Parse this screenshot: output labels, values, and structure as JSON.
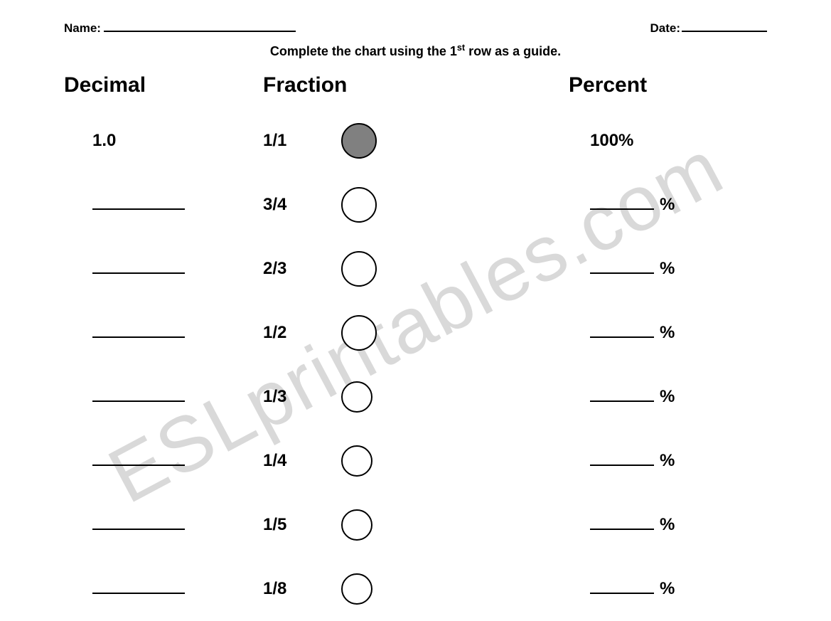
{
  "header": {
    "name_label": "Name:",
    "date_label": "Date:"
  },
  "instruction": {
    "prefix": "Complete the chart using the 1",
    "sup": "st",
    "suffix": " row as a guide."
  },
  "column_headers": {
    "decimal": "Decimal",
    "fraction": "Fraction",
    "percent": "Percent"
  },
  "rows": [
    {
      "decimal": "1.0",
      "fraction": "1/1",
      "circle_filled": true,
      "circle_small": false,
      "percent_value": "100",
      "percent_sign": "%"
    },
    {
      "decimal": "",
      "fraction": "3/4",
      "circle_filled": false,
      "circle_small": false,
      "percent_value": "",
      "percent_sign": "%"
    },
    {
      "decimal": "",
      "fraction": "2/3",
      "circle_filled": false,
      "circle_small": false,
      "percent_value": "",
      "percent_sign": "%"
    },
    {
      "decimal": "",
      "fraction": "1/2",
      "circle_filled": false,
      "circle_small": false,
      "percent_value": "",
      "percent_sign": "%"
    },
    {
      "decimal": "",
      "fraction": "1/3",
      "circle_filled": false,
      "circle_small": true,
      "percent_value": "",
      "percent_sign": "%"
    },
    {
      "decimal": "",
      "fraction": "1/4",
      "circle_filled": false,
      "circle_small": true,
      "percent_value": "",
      "percent_sign": "%"
    },
    {
      "decimal": "",
      "fraction": "1/5",
      "circle_filled": false,
      "circle_small": true,
      "percent_value": "",
      "percent_sign": "%"
    },
    {
      "decimal": "",
      "fraction": "1/8",
      "circle_filled": false,
      "circle_small": true,
      "percent_value": "",
      "percent_sign": "%"
    }
  ],
  "watermark": "ESLprintables.com",
  "style": {
    "page_bg": "#ffffff",
    "text_color": "#000000",
    "filled_circle_color": "#808080",
    "watermark_color": "#d9d9d9",
    "header_fontsize": 30,
    "row_fontsize": 24,
    "instruction_fontsize": 18
  }
}
